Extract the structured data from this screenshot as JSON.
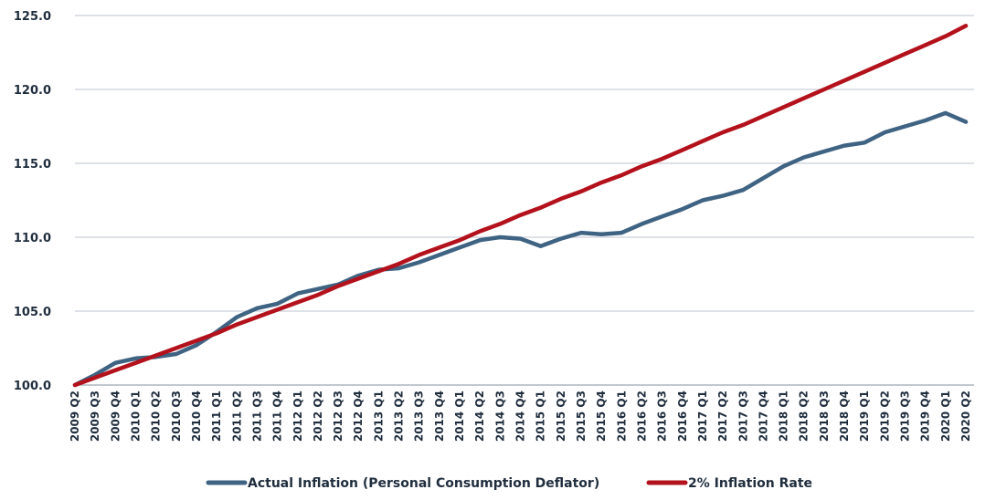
{
  "chart_data": {
    "type": "line",
    "categories": [
      "2009 Q2",
      "2009 Q3",
      "2009 Q4",
      "2010 Q1",
      "2010 Q2",
      "2010 Q3",
      "2010 Q4",
      "2011 Q1",
      "2011 Q2",
      "2011 Q3",
      "2011 Q4",
      "2012 Q1",
      "2012 Q2",
      "2012 Q3",
      "2012 Q4",
      "2013 Q1",
      "2013 Q2",
      "2013 Q3",
      "2013 Q4",
      "2014 Q1",
      "2014 Q2",
      "2014 Q3",
      "2014 Q4",
      "2015 Q1",
      "2015 Q2",
      "2015 Q3",
      "2015 Q4",
      "2016 Q1",
      "2016 Q2",
      "2016 Q3",
      "2016 Q4",
      "2017 Q1",
      "2017 Q2",
      "2017 Q3",
      "2017 Q4",
      "2018 Q1",
      "2018 Q2",
      "2018 Q3",
      "2018 Q4",
      "2019 Q1",
      "2019 Q2",
      "2019 Q3",
      "2019 Q4",
      "2020 Q1",
      "2020 Q2"
    ],
    "series": [
      {
        "name": "Actual Inflation (Personal Consumption Deflator)",
        "color": "#3f6382",
        "values": [
          100.0,
          100.7,
          101.5,
          101.8,
          101.9,
          102.1,
          102.7,
          103.6,
          104.6,
          105.2,
          105.5,
          106.2,
          106.5,
          106.8,
          107.4,
          107.8,
          107.9,
          108.3,
          108.8,
          109.3,
          109.8,
          110.0,
          109.9,
          109.4,
          109.9,
          110.3,
          110.2,
          110.3,
          110.9,
          111.4,
          111.9,
          112.5,
          112.8,
          113.2,
          114.0,
          114.8,
          115.4,
          115.8,
          116.2,
          116.4,
          117.1,
          117.5,
          117.9,
          118.4,
          117.8
        ]
      },
      {
        "name": "2% Inflation Rate",
        "color": "#b3121c",
        "values": [
          100.0,
          100.5,
          101.0,
          101.5,
          102.0,
          102.5,
          103.0,
          103.5,
          104.1,
          104.6,
          105.1,
          105.6,
          106.1,
          106.7,
          107.2,
          107.7,
          108.2,
          108.8,
          109.3,
          109.8,
          110.4,
          110.9,
          111.5,
          112.0,
          112.6,
          113.1,
          113.7,
          114.2,
          114.8,
          115.3,
          115.9,
          116.5,
          117.1,
          117.6,
          118.2,
          118.8,
          119.4,
          120.0,
          120.6,
          121.2,
          121.8,
          122.4,
          123.0,
          123.6,
          124.3
        ]
      }
    ],
    "yticks": [
      "100.0",
      "105.0",
      "110.0",
      "115.0",
      "120.0",
      "125.0"
    ],
    "ylim": [
      100,
      125
    ],
    "grid": true,
    "legend": "bottom-center",
    "title": "",
    "xlabel": "",
    "ylabel": ""
  }
}
